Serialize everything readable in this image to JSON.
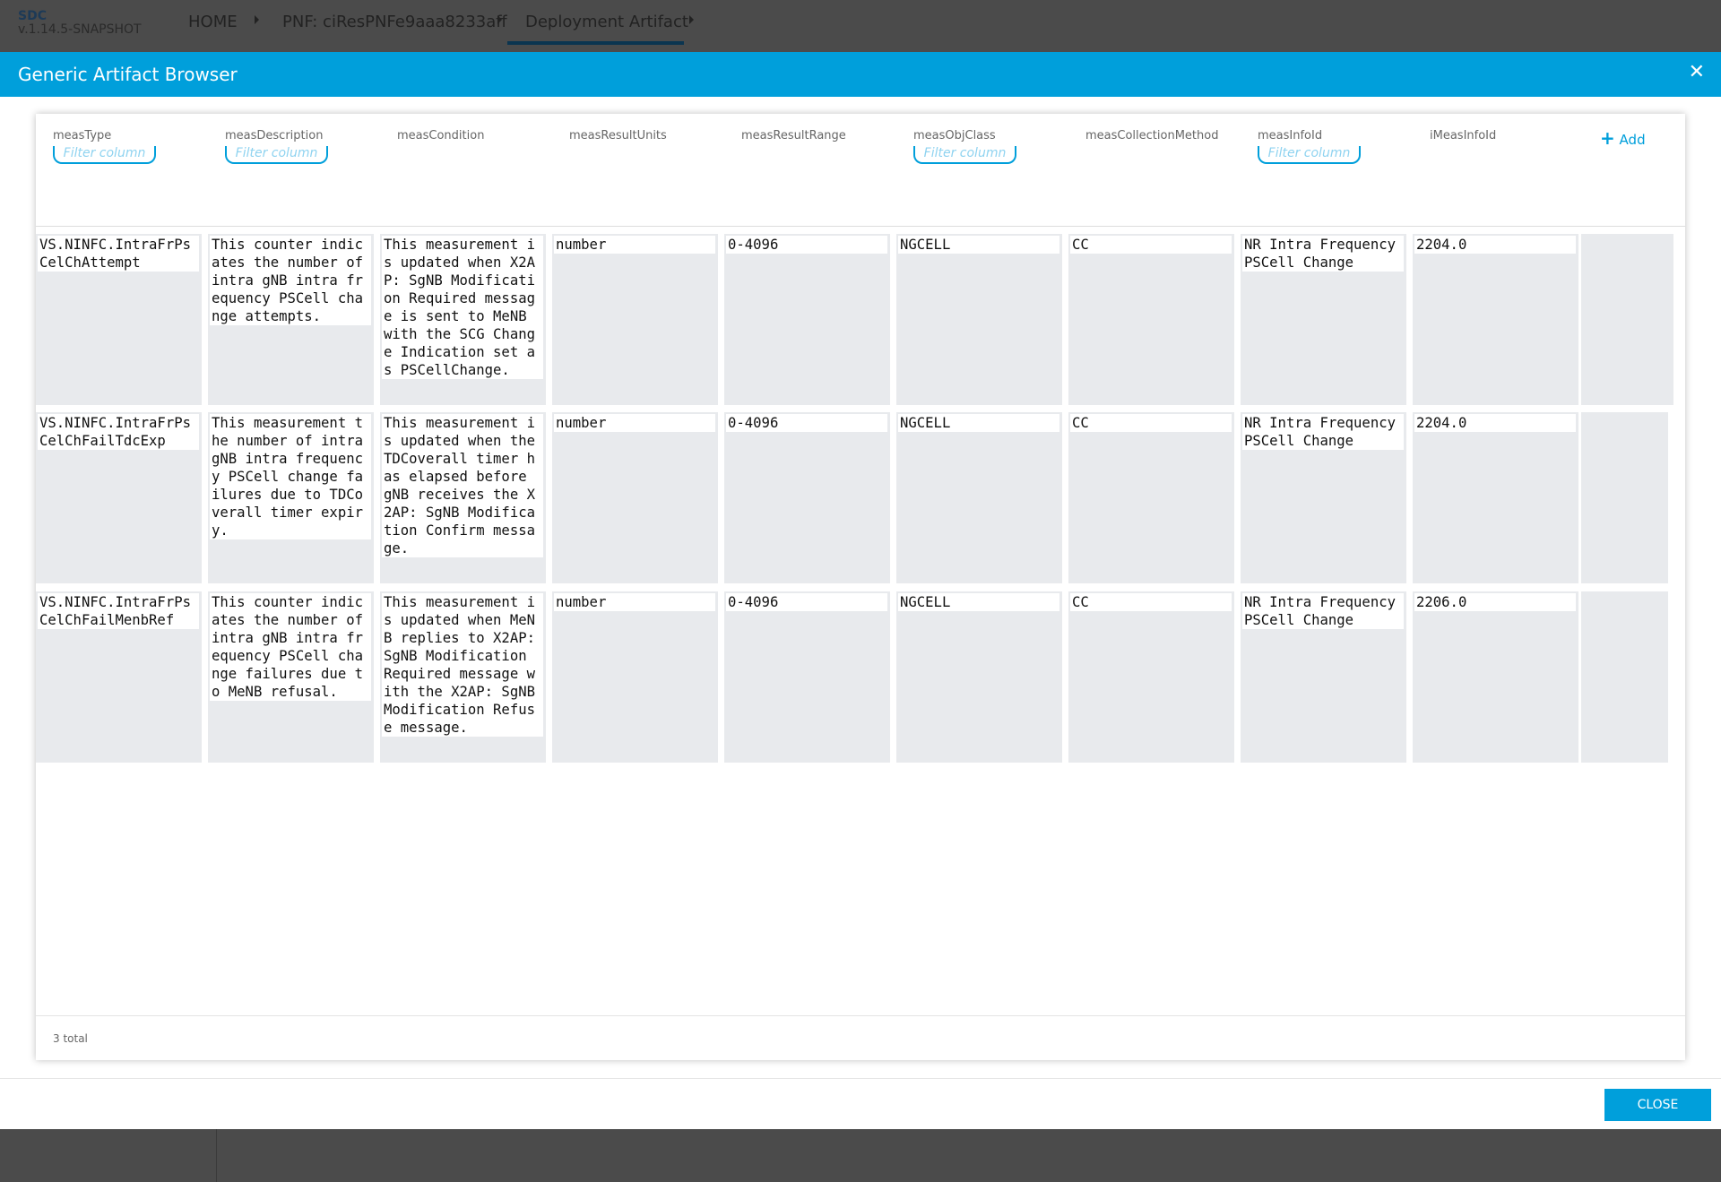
{
  "app": {
    "name": "SDC",
    "version": "v.1.14.5-SNAPSHOT"
  },
  "breadcrumb": [
    "HOME",
    "PNF: ciResPNFe9aaa8233aff",
    "Deployment Artifact"
  ],
  "modal": {
    "title": "Generic Artifact Browser",
    "close_label": "CLOSE",
    "close_icon": "close-icon"
  },
  "table": {
    "columns": [
      "measType",
      "measDescription",
      "measCondition",
      "measResultUnits",
      "measResultRange",
      "measObjClass",
      "measCollectionMethod",
      "measInfoId",
      "iMeasInfoId"
    ],
    "filter_placeholder": "Filter column",
    "add_label": "Add",
    "rows": [
      [
        "VS.NINFC.IntraFrPsCelChAttempt",
        "This counter indicates the number of intra gNB intra frequency PSCell change attempts.",
        "This measurement is updated when X2AP: SgNB Modification Required message is sent to MeNB with the SCG Change Indication set as PSCellChange.",
        "number",
        "0-4096",
        "NGCELL",
        "CC",
        "NR Intra Frequency PSCell Change",
        "2204.0"
      ],
      [
        "VS.NINFC.IntraFrPsCelChFailTdcExp",
        "This measurement the number of intra gNB intra frequency PSCell change failures due to TDCoverall timer expiry.",
        "This measurement is updated when the TDCoverall timer has elapsed before gNB receives the X2AP: SgNB Modification Confirm message.",
        "number",
        "0-4096",
        "NGCELL",
        "CC",
        "NR Intra Frequency PSCell Change",
        "2204.0"
      ],
      [
        "VS.NINFC.IntraFrPsCelChFailMenbRef",
        "This counter indicates the number of intra gNB intra frequency PSCell change failures due to MeNB refusal.",
        "This measurement is updated when MeNB replies to X2AP: SgNB Modification Required message with the X2AP: SgNB Modification Refuse message.",
        "number",
        "0-4096",
        "NGCELL",
        "CC",
        "NR Intra Frequency PSCell Change",
        "2206.0"
      ]
    ],
    "total": "3 total"
  },
  "colors": {
    "accent": "#009fdb",
    "topbar": "#4b4b4b"
  }
}
